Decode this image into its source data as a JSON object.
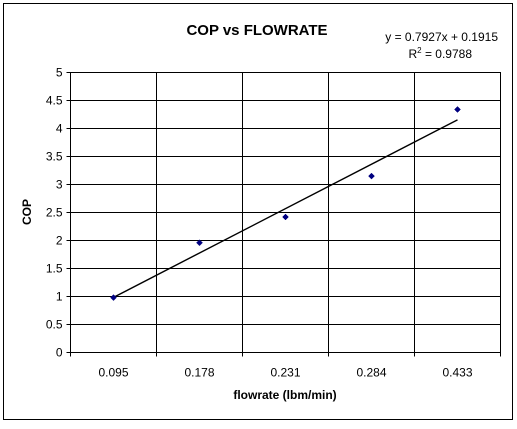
{
  "chart_data": {
    "type": "scatter",
    "title": "COP vs FLOWRATE",
    "xlabel": "flowrate (lbm/min)",
    "ylabel": "COP",
    "categories": [
      "0.095",
      "0.178",
      "0.231",
      "0.284",
      "0.433"
    ],
    "ylim": [
      0,
      5
    ],
    "yticks": [
      "0",
      "0.5",
      "1",
      "1.5",
      "2",
      "2.5",
      "3",
      "3.5",
      "4",
      "4.5",
      "5"
    ],
    "grid": true,
    "series": [
      {
        "values": [
          0.98,
          1.96,
          2.42,
          3.15,
          4.34
        ],
        "color": "#000080"
      }
    ],
    "trendline": {
      "type": "linear",
      "equation": "y = 0.7927x + 0.1915",
      "r2_prefix": "R",
      "r2_exponent": "2",
      "r2_value": " = 0.9788",
      "start": 0.984,
      "end": 4.155
    }
  }
}
